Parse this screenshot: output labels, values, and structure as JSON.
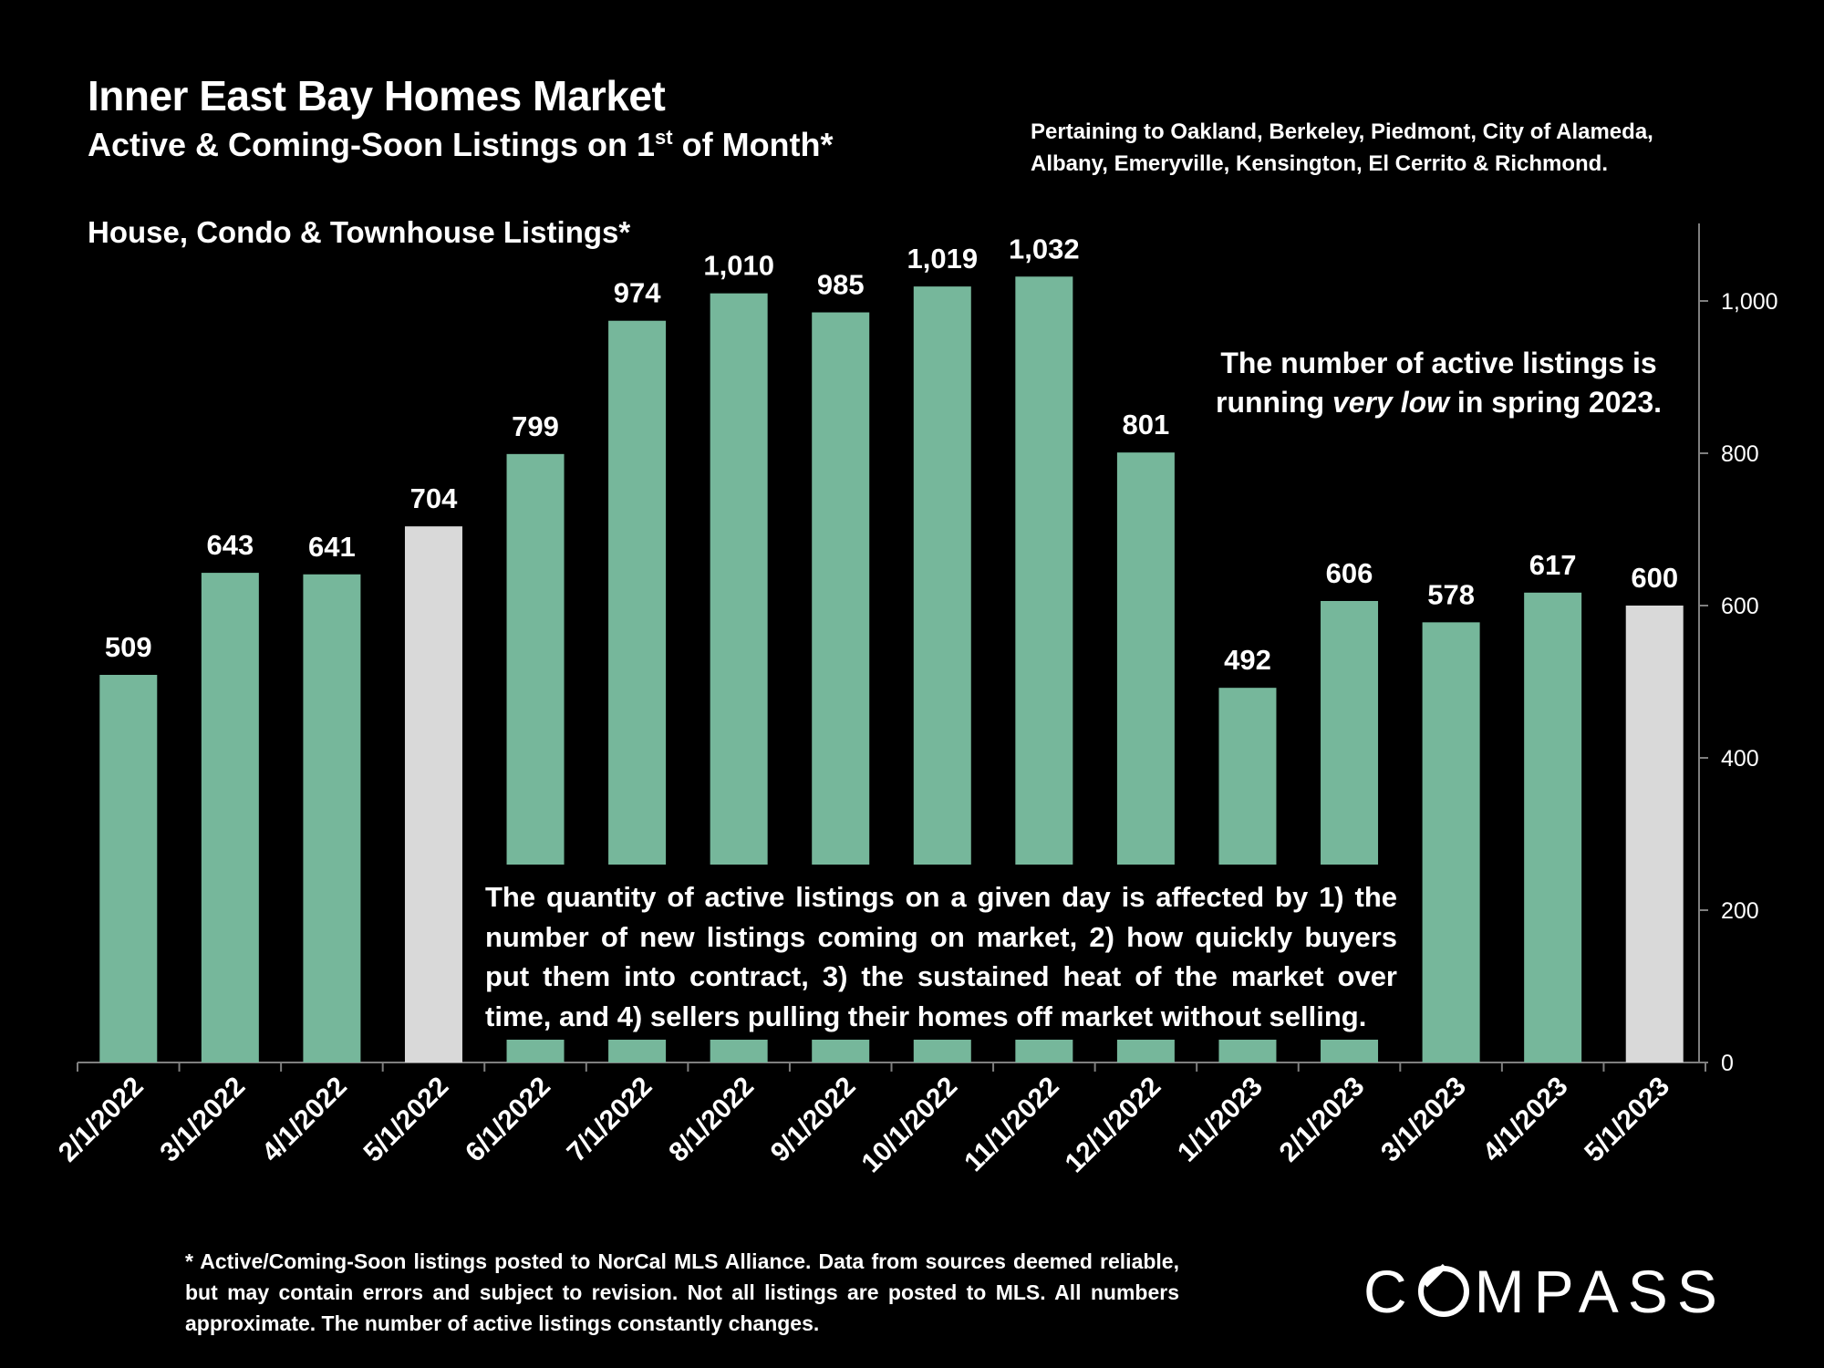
{
  "header": {
    "title": "Inner East Bay Homes Market",
    "subtitle_pre": "Active & Coming-Soon Listings on 1",
    "subtitle_sup": "st",
    "subtitle_post": " of Month*",
    "region_note": "Pertaining to Oakland, Berkeley, Piedmont, City of Alameda, Albany, Emeryville, Kensington, El Cerrito & Richmond.",
    "series_heading": "House, Condo & Townhouse Listings*"
  },
  "callouts": {
    "right_pre": "The number of active listings is running ",
    "right_em": "very low",
    "right_post": " in spring 2023.",
    "main_lines": [
      "The quantity of active listings on a given day is affected by 1) the",
      "number of new listings coming on market, 2) how quickly buyers",
      "put them into contract, 3) the sustained heat of the market over",
      "time, and 4) sellers pulling their homes off market without selling."
    ]
  },
  "footnote": "* Active/Coming-Soon listings posted to NorCal MLS Alliance.  Data from sources deemed reliable, but may contain errors and subject to revision.  Not all listings are posted to MLS. All numbers approximate. The number of active listings constantly changes.",
  "logo": {
    "pre": "C",
    "post": "MPASS"
  },
  "colors": {
    "background": "#000000",
    "bar": "#76b79b",
    "bar_highlight": "#d9d9d9",
    "axis": "#7f7f7f",
    "text": "#ffffff"
  },
  "chart_data": {
    "type": "bar",
    "categories": [
      "2/1/2022",
      "3/1/2022",
      "4/1/2022",
      "5/1/2022",
      "6/1/2022",
      "7/1/2022",
      "8/1/2022",
      "9/1/2022",
      "10/1/2022",
      "11/1/2022",
      "12/1/2022",
      "1/1/2023",
      "2/1/2023",
      "3/1/2023",
      "4/1/2023",
      "5/1/2023"
    ],
    "values": [
      509,
      643,
      641,
      704,
      799,
      974,
      1010,
      985,
      1019,
      1032,
      801,
      492,
      606,
      578,
      617,
      600
    ],
    "data_labels": [
      "509",
      "643",
      "641",
      "704",
      "799",
      "974",
      "1,010",
      "985",
      "1,019",
      "1,032",
      "801",
      "492",
      "606",
      "578",
      "617",
      "600"
    ],
    "highlighted": [
      "5/1/2022",
      "5/1/2023"
    ],
    "y_axis": {
      "position": "right",
      "ticks": [
        0,
        200,
        400,
        600,
        800,
        1000
      ],
      "tick_labels": [
        "0",
        "200",
        "400",
        "600",
        "800",
        "1,000"
      ],
      "ylim": [
        0,
        1100
      ]
    },
    "grid": false
  }
}
